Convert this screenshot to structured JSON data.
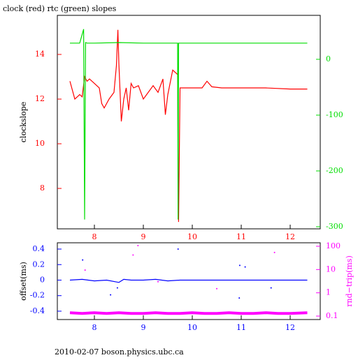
{
  "footer": "2010-02-07 boson.physics.ubc.ca",
  "chart_data": [
    {
      "type": "line",
      "title": "clock (red) rtc (green) slopes",
      "ylabel": "clockslope",
      "xlim": [
        7.243,
        12.614
      ],
      "xticks": [
        8,
        9,
        10,
        11,
        12
      ],
      "ylim": [
        6.19,
        15.75
      ],
      "yticks": [
        8,
        10,
        12,
        14
      ],
      "ycolor": "#ff0000",
      "y2lim": [
        -303.75,
        78.75
      ],
      "y2ticks": [
        0,
        -100,
        -200,
        -300
      ],
      "y2color": "#00dd00",
      "series": [
        {
          "color": "#ff0000",
          "style": "line",
          "x": [
            7.5,
            7.55,
            7.6,
            7.65,
            7.7,
            7.75,
            7.8,
            7.85,
            7.9,
            8.0,
            8.1,
            8.15,
            8.2,
            8.3,
            8.4,
            8.45,
            8.48,
            8.5,
            8.55,
            8.6,
            8.65,
            8.7,
            8.75,
            8.8,
            8.9,
            9.0,
            9.1,
            9.2,
            9.3,
            9.4,
            9.45,
            9.5,
            9.6,
            9.7,
            9.72,
            9.75,
            10.0,
            10.2,
            10.3,
            10.4,
            10.6,
            11.0,
            11.5,
            12.0,
            12.35
          ],
          "values": [
            12.8,
            12.4,
            12.0,
            12.1,
            12.2,
            12.1,
            13.0,
            12.8,
            12.9,
            12.7,
            12.5,
            11.8,
            11.6,
            12.0,
            12.3,
            13.5,
            15.1,
            13.6,
            11.0,
            12.0,
            12.5,
            11.5,
            12.7,
            12.5,
            12.6,
            12.0,
            12.3,
            12.6,
            12.3,
            12.9,
            11.3,
            12.2,
            13.3,
            13.1,
            6.5,
            12.5,
            12.5,
            12.5,
            12.8,
            12.55,
            12.5,
            12.5,
            12.5,
            12.45,
            12.45
          ]
        },
        {
          "color": "#00dd00",
          "style": "line",
          "axis": "y2",
          "x": [
            7.5,
            7.7,
            7.78,
            7.8,
            7.82,
            7.85,
            8.0,
            8.5,
            9.0,
            9.5,
            9.7,
            9.71,
            9.72,
            10.0,
            10.5,
            11.0,
            11.5,
            12.0,
            12.35
          ],
          "values": [
            29,
            29,
            54,
            -287,
            30,
            29,
            29,
            30,
            29,
            29,
            29,
            -287,
            29,
            29,
            29,
            29,
            29,
            29,
            29
          ]
        }
      ]
    },
    {
      "type": "line",
      "ylabel": "offset(ms)",
      "y2label": "rnd−trip(ms)",
      "xlim": [
        7.243,
        12.614
      ],
      "xticks": [
        8,
        9,
        10,
        11,
        12
      ],
      "ylim": [
        -0.508,
        0.481
      ],
      "yticks": [
        0.4,
        0.2,
        0,
        -0.2,
        -0.4
      ],
      "ycolor": "#0000ff",
      "y2lim": [
        0.071,
        141
      ],
      "y2log": true,
      "y2ticks": [
        0.1,
        1,
        10,
        100
      ],
      "y2color": "#ff00ff",
      "series": [
        {
          "color": "#0000ff",
          "style": "line",
          "x": [
            7.5,
            7.75,
            8.0,
            8.25,
            8.5,
            8.6,
            8.75,
            9.0,
            9.25,
            9.5,
            9.75,
            10.0,
            10.25,
            10.5,
            10.75,
            11.0,
            11.25,
            11.5,
            11.75,
            12.0,
            12.35
          ],
          "values": [
            0.0,
            0.01,
            -0.01,
            0.0,
            -0.03,
            0.01,
            0.0,
            0.0,
            0.01,
            -0.01,
            0.0,
            0.0,
            0.0,
            0.0,
            0.0,
            0.0,
            0.0,
            0.0,
            0.0,
            0.0,
            0.0
          ]
        },
        {
          "color": "#0000ff",
          "style": "points",
          "x": [
            7.76,
            9.71,
            10.97,
            11.08,
            11.61,
            8.33,
            10.96,
            8.47
          ],
          "values": [
            0.26,
            0.4,
            0.19,
            0.17,
            -0.1,
            -0.19,
            -0.23,
            -0.1
          ]
        },
        {
          "color": "#ff00ff",
          "style": "line",
          "axis": "y2",
          "x": [
            7.5,
            7.75,
            8.0,
            8.25,
            8.5,
            8.75,
            9.0,
            9.25,
            9.5,
            9.75,
            10.0,
            10.25,
            10.5,
            10.75,
            11.0,
            11.25,
            11.5,
            11.75,
            12.0,
            12.35
          ],
          "values": [
            0.14,
            0.13,
            0.14,
            0.13,
            0.14,
            0.13,
            0.13,
            0.14,
            0.13,
            0.13,
            0.14,
            0.13,
            0.13,
            0.14,
            0.13,
            0.13,
            0.14,
            0.13,
            0.13,
            0.14
          ]
        },
        {
          "color": "#ff00ff",
          "style": "points",
          "axis": "y2",
          "x": [
            8.89,
            8.79,
            11.68,
            7.81,
            9.3,
            10.5
          ],
          "values": [
            107,
            42,
            54,
            9.5,
            3,
            1.5
          ]
        }
      ]
    }
  ]
}
